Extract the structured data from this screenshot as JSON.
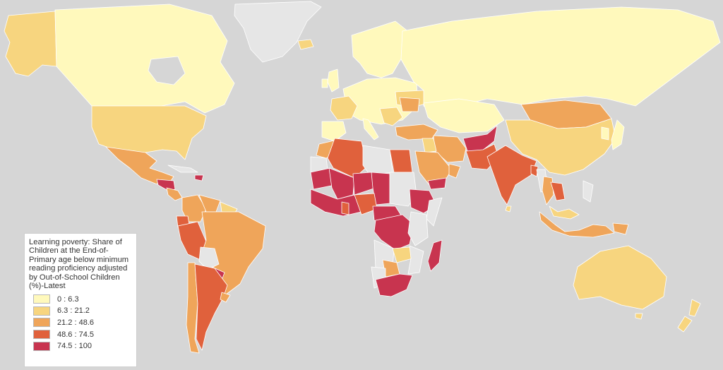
{
  "map": {
    "colors": {
      "ocean": "#d6d6d6",
      "no_data": "#e6e6e6",
      "border": "#ffffff"
    }
  },
  "legend": {
    "title": "Learning poverty: Share of Children at the End-of-Primary age below minimum reading proficiency adjusted by Out-of-School Children (%)-Latest",
    "classes": [
      {
        "label": "0 : 6.3",
        "color": "#fff9bc"
      },
      {
        "label": "6.3 : 21.2",
        "color": "#f7d57f"
      },
      {
        "label": "21.2 : 48.6",
        "color": "#efa55a"
      },
      {
        "label": "48.6 : 74.5",
        "color": "#e0613c"
      },
      {
        "label": "74.5 : 100",
        "color": "#c8344f"
      }
    ]
  }
}
